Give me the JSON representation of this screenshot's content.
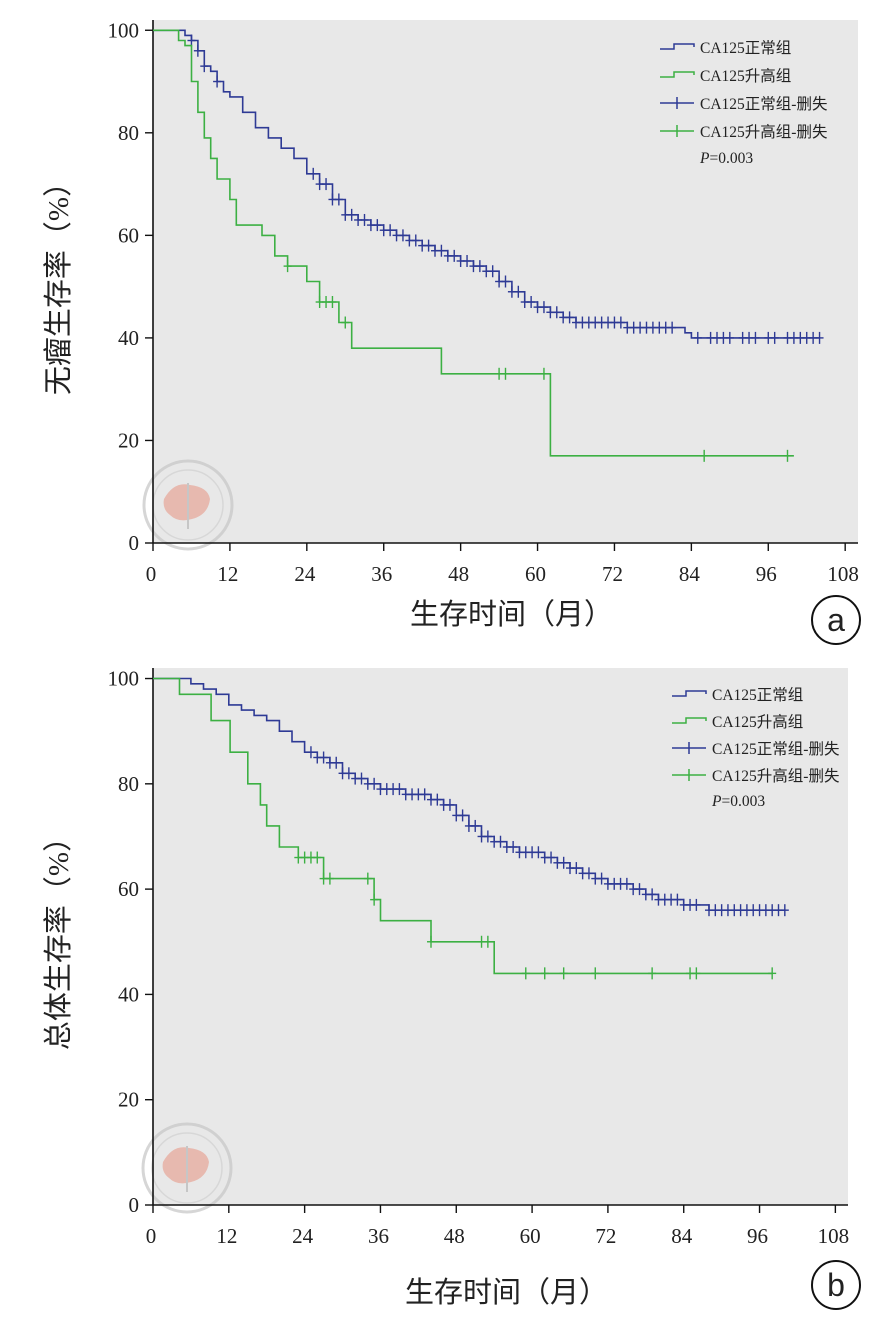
{
  "colors": {
    "plot_bg": "#e8e8e8",
    "normal": "#2e3a95",
    "elevated": "#3cb043",
    "axis": "#111111",
    "watermark": "#e69a8a"
  },
  "chart_data": [
    {
      "type": "line",
      "subtype": "kaplan-meier",
      "panel_label": "a",
      "ylabel": "无瘤生存率（%）",
      "xlabel": "生存时间（月）",
      "xlim": [
        0,
        110
      ],
      "ylim": [
        0,
        102
      ],
      "xticks": [
        0,
        12,
        24,
        36,
        48,
        60,
        72,
        84,
        96,
        108
      ],
      "xtick_labels": [
        "0",
        "12",
        "24",
        "36",
        "48",
        "60",
        "72",
        "84",
        "96",
        "108"
      ],
      "yticks": [
        0,
        20,
        40,
        60,
        80,
        100
      ],
      "ytick_labels": [
        "0",
        "20",
        "40",
        "60",
        "80",
        "100"
      ],
      "legend": {
        "position": "top-right",
        "entries": [
          "CA125正常组",
          "CA125升高组",
          "CA125正常组-删失",
          "CA125升高组-删失"
        ],
        "p_label": "P",
        "p_text": "=0.003"
      },
      "series": [
        {
          "name": "CA125正常组",
          "color_key": "normal",
          "points": [
            [
              0,
              100
            ],
            [
              4,
              100
            ],
            [
              5,
              99
            ],
            [
              6,
              98
            ],
            [
              7,
              96
            ],
            [
              8,
              93
            ],
            [
              9,
              92
            ],
            [
              10,
              90
            ],
            [
              11,
              88
            ],
            [
              12,
              87
            ],
            [
              14,
              84
            ],
            [
              16,
              81
            ],
            [
              18,
              79
            ],
            [
              20,
              77
            ],
            [
              22,
              75
            ],
            [
              24,
              72
            ],
            [
              26,
              70
            ],
            [
              28,
              67
            ],
            [
              30,
              64
            ],
            [
              32,
              63
            ],
            [
              34,
              62
            ],
            [
              36,
              61
            ],
            [
              38,
              60
            ],
            [
              40,
              59
            ],
            [
              42,
              58
            ],
            [
              44,
              57
            ],
            [
              46,
              56
            ],
            [
              48,
              55
            ],
            [
              50,
              54
            ],
            [
              52,
              53
            ],
            [
              54,
              51
            ],
            [
              56,
              49
            ],
            [
              58,
              47
            ],
            [
              60,
              46
            ],
            [
              62,
              45
            ],
            [
              64,
              44
            ],
            [
              66,
              43
            ],
            [
              70,
              43
            ],
            [
              74,
              42
            ],
            [
              80,
              42
            ],
            [
              82,
              42
            ],
            [
              83,
              41
            ],
            [
              84,
              40
            ],
            [
              90,
              40
            ],
            [
              96,
              40
            ],
            [
              104,
              40
            ]
          ],
          "censored": [
            6,
            7,
            8,
            10,
            25,
            26,
            27,
            28,
            29,
            30,
            31,
            32,
            33,
            34,
            35,
            36,
            37,
            38,
            39,
            40,
            41,
            42,
            43,
            44,
            45,
            46,
            47,
            48,
            49,
            50,
            51,
            52,
            53,
            54,
            55,
            56,
            57,
            58,
            59,
            60,
            61,
            62,
            63,
            64,
            65,
            66,
            67,
            68,
            69,
            70,
            71,
            72,
            73,
            74,
            75,
            76,
            77,
            78,
            79,
            80,
            81,
            85,
            87,
            88,
            89,
            90,
            92,
            93,
            94,
            96,
            97,
            99,
            100,
            101,
            102,
            103,
            104
          ]
        },
        {
          "name": "CA125升高组",
          "color_key": "elevated",
          "points": [
            [
              0,
              100
            ],
            [
              3,
              100
            ],
            [
              4,
              98
            ],
            [
              5,
              97
            ],
            [
              6,
              90
            ],
            [
              7,
              84
            ],
            [
              8,
              79
            ],
            [
              9,
              75
            ],
            [
              10,
              71
            ],
            [
              12,
              67
            ],
            [
              13,
              62
            ],
            [
              17,
              60
            ],
            [
              19,
              56
            ],
            [
              21,
              54
            ],
            [
              24,
              51
            ],
            [
              26,
              47
            ],
            [
              29,
              43
            ],
            [
              31,
              38
            ],
            [
              45,
              33
            ],
            [
              61,
              33
            ],
            [
              62,
              17
            ],
            [
              100,
              17
            ]
          ],
          "censored": [
            21,
            26,
            27,
            28,
            30,
            54,
            55,
            61,
            86,
            99
          ]
        }
      ]
    },
    {
      "type": "line",
      "subtype": "kaplan-meier",
      "panel_label": "b",
      "ylabel": "总体生存率（%）",
      "xlabel": "生存时间（月）",
      "xlim": [
        0,
        110
      ],
      "ylim": [
        0,
        102
      ],
      "xticks": [
        0,
        12,
        24,
        36,
        48,
        60,
        72,
        84,
        96,
        108
      ],
      "xtick_labels": [
        "0",
        "12",
        "24",
        "36",
        "48",
        "60",
        "72",
        "84",
        "96",
        "108"
      ],
      "yticks": [
        0,
        20,
        40,
        60,
        80,
        100
      ],
      "ytick_labels": [
        "0",
        "20",
        "40",
        "60",
        "80",
        "100"
      ],
      "legend": {
        "position": "top-right",
        "entries": [
          "CA125正常组",
          "CA125升高组",
          "CA125正常组-删失",
          "CA125升高组-删失"
        ],
        "p_label": "P",
        "p_text": "=0.003"
      },
      "series": [
        {
          "name": "CA125正常组",
          "color_key": "normal",
          "points": [
            [
              0,
              100
            ],
            [
              4,
              100
            ],
            [
              6,
              99
            ],
            [
              8,
              98
            ],
            [
              10,
              97
            ],
            [
              12,
              95
            ],
            [
              14,
              94
            ],
            [
              16,
              93
            ],
            [
              18,
              92
            ],
            [
              20,
              90
            ],
            [
              22,
              88
            ],
            [
              24,
              86
            ],
            [
              26,
              85
            ],
            [
              28,
              84
            ],
            [
              30,
              82
            ],
            [
              32,
              81
            ],
            [
              34,
              80
            ],
            [
              36,
              79
            ],
            [
              38,
              79
            ],
            [
              40,
              78
            ],
            [
              42,
              78
            ],
            [
              44,
              77
            ],
            [
              46,
              76
            ],
            [
              48,
              74
            ],
            [
              50,
              72
            ],
            [
              52,
              70
            ],
            [
              54,
              69
            ],
            [
              56,
              68
            ],
            [
              58,
              67
            ],
            [
              60,
              67
            ],
            [
              62,
              66
            ],
            [
              64,
              65
            ],
            [
              66,
              64
            ],
            [
              68,
              63
            ],
            [
              70,
              62
            ],
            [
              72,
              61
            ],
            [
              74,
              61
            ],
            [
              76,
              60
            ],
            [
              78,
              59
            ],
            [
              80,
              58
            ],
            [
              84,
              57
            ],
            [
              86,
              57
            ],
            [
              88,
              56
            ],
            [
              92,
              56
            ],
            [
              96,
              56
            ],
            [
              100,
              56
            ]
          ],
          "censored": [
            25,
            26,
            27,
            28,
            29,
            30,
            31,
            32,
            33,
            34,
            35,
            36,
            37,
            38,
            39,
            40,
            41,
            42,
            43,
            44,
            45,
            46,
            47,
            48,
            49,
            50,
            51,
            52,
            53,
            54,
            55,
            56,
            57,
            58,
            59,
            60,
            61,
            62,
            63,
            64,
            65,
            66,
            67,
            68,
            69,
            70,
            71,
            72,
            73,
            74,
            75,
            76,
            77,
            78,
            79,
            80,
            81,
            82,
            83,
            84,
            85,
            86,
            88,
            89,
            90,
            91,
            92,
            93,
            94,
            95,
            96,
            97,
            98,
            99,
            100
          ]
        },
        {
          "name": "CA125升高组",
          "color_key": "elevated",
          "points": [
            [
              0,
              100
            ],
            [
              4,
              100
            ],
            [
              4.2,
              97
            ],
            [
              9,
              97
            ],
            [
              9.2,
              92
            ],
            [
              12,
              92
            ],
            [
              12.2,
              86
            ],
            [
              14,
              86
            ],
            [
              15,
              80
            ],
            [
              17,
              76
            ],
            [
              18,
              72
            ],
            [
              20,
              68
            ],
            [
              23,
              66
            ],
            [
              27,
              62
            ],
            [
              34,
              62
            ],
            [
              35,
              58
            ],
            [
              36,
              54
            ],
            [
              43,
              54
            ],
            [
              44,
              50
            ],
            [
              53,
              50
            ],
            [
              54,
              44
            ],
            [
              98,
              44
            ]
          ],
          "censored": [
            23,
            24,
            25,
            26,
            27,
            28,
            34,
            35,
            44,
            52,
            53,
            59,
            62,
            65,
            70,
            79,
            85,
            86,
            98
          ]
        }
      ]
    }
  ]
}
